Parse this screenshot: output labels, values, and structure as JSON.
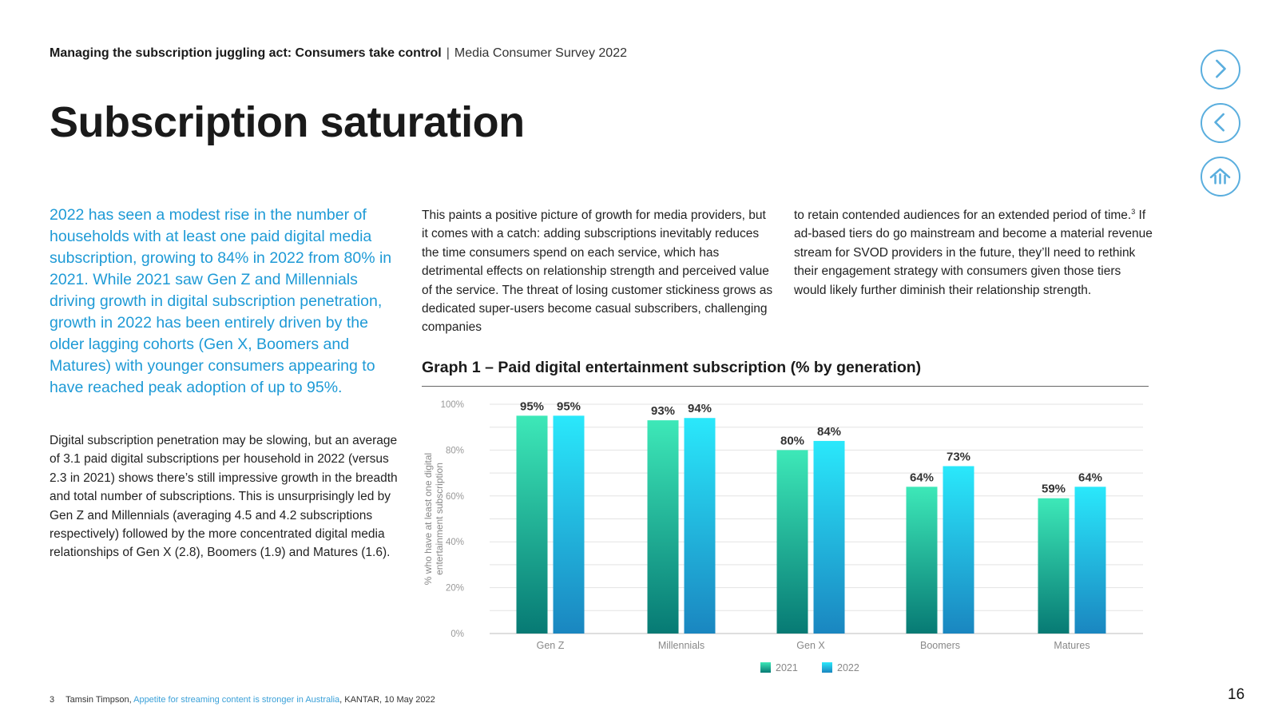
{
  "header": {
    "bold": "Managing the subscription juggling act: Consumers take control",
    "separator": "|",
    "sub": "Media Consumer Survey 2022"
  },
  "page_title": "Subscription saturation",
  "nav": {
    "next_icon": "chevron-right-icon",
    "prev_icon": "chevron-left-icon",
    "home_icon": "home-icon",
    "color": "#5aaede"
  },
  "lead_text": "2022 has seen a modest rise in the number of households with at least one paid digital media subscription, growing to 84% in 2022 from 80% in 2021. While 2021 saw Gen Z and Millennials driving growth in digital subscription penetration, growth in 2022 has been entirely driven by the older lagging cohorts (Gen X, Boomers and Matures) with younger consumers appearing to have reached peak adoption of up to 95%.",
  "body_text": "Digital subscription penetration may be slowing, but an average of 3.1 paid digital subscriptions per household in 2022 (versus 2.3 in 2021) shows there’s still impressive growth in the breadth and total number of subscriptions. This is unsurprisingly led by Gen Z and Millennials (averaging 4.5 and 4.2 subscriptions respectively) followed by the more concentrated digital media relationships of Gen X (2.8), Boomers (1.9) and Matures (1.6).",
  "col2_text": "This paints a positive picture of growth for media providers, but it comes with a catch: adding subscriptions inevitably reduces the time consumers spend on each service, which has detrimental effects on relationship strength and perceived value of the service. The threat of losing customer stickiness grows as dedicated super-users become casual subscribers, challenging companies",
  "col3": {
    "before": "to retain contended audiences for an extended period of time.",
    "sup": "3",
    "after": " If ad-based tiers do go mainstream and become a material revenue stream for SVOD providers in the future, they’ll need to rethink their engagement strategy with consumers given those tiers would likely further diminish their relationship strength."
  },
  "chart_data": {
    "type": "bar",
    "title": "Graph 1 – Paid digital entertainment subscription (% by generation)",
    "ylabel_line1": "% who have at least one digital",
    "ylabel_line2": "entertainment subscription",
    "xlabel": "",
    "ylim": [
      0,
      100
    ],
    "yticks": [
      0,
      20,
      40,
      60,
      80,
      100
    ],
    "ytick_labels": [
      "0%",
      "20%",
      "40%",
      "60%",
      "80%",
      "100%"
    ],
    "categories": [
      "Gen Z",
      "Millennials",
      "Gen X",
      "Boomers",
      "Matures"
    ],
    "series": [
      {
        "name": "2021",
        "values": [
          95,
          93,
          80,
          64,
          59
        ],
        "labels": [
          "95%",
          "93%",
          "80%",
          "64%",
          "59%"
        ],
        "color_top": "#3de8b8",
        "color_bottom": "#077a74"
      },
      {
        "name": "2022",
        "values": [
          95,
          94,
          84,
          73,
          64
        ],
        "labels": [
          "95%",
          "94%",
          "84%",
          "73%",
          "64%"
        ],
        "color_top": "#2ae8fb",
        "color_bottom": "#1a86c0"
      }
    ],
    "legend_position": "bottom-center",
    "grid": true
  },
  "footnote": {
    "number": "3",
    "author": "Tamsin Timpson, ",
    "link_text": "Appetite for streaming content is stronger in Australia",
    "rest": ", KANTAR, 10 May 2022"
  },
  "page_number": "16"
}
